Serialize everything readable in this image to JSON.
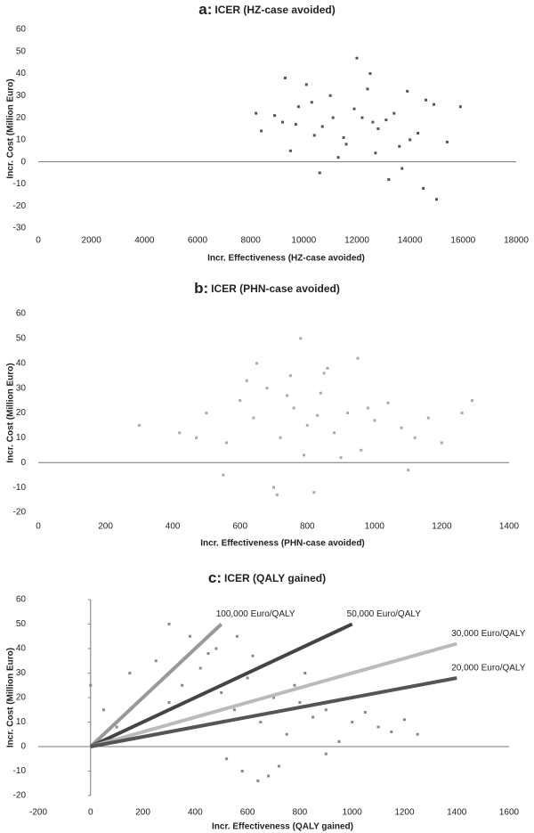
{
  "chart_data": [
    {
      "type": "scatter",
      "panel": "a:",
      "title": "ICER (HZ-case avoided)",
      "x_label": "Incr. Effectiveness (HZ-case avoided)",
      "y_label": "Incr. Cost (Million Euro)",
      "xlim": [
        0,
        18000
      ],
      "ylim": [
        -30,
        60
      ],
      "xticks": [
        0,
        2000,
        4000,
        6000,
        8000,
        10000,
        12000,
        14000,
        16000,
        18000
      ],
      "yticks": [
        -30,
        -20,
        -10,
        0,
        10,
        20,
        30,
        40,
        50,
        60
      ],
      "color": "#555555",
      "x": [
        9200,
        9800,
        10400,
        11000,
        11600,
        12200,
        12800,
        13400,
        14000,
        14600,
        9500,
        10100,
        10700,
        11300,
        11900,
        12500,
        13100,
        13700,
        14300,
        14900,
        8400,
        8900,
        15400,
        15900,
        9300,
        10600,
        12000,
        13200,
        14500,
        11500,
        10300,
        12700,
        13900,
        9700,
        11100,
        12400,
        13600,
        15000,
        8200,
        12600
      ],
      "values": [
        18,
        25,
        12,
        30,
        8,
        20,
        15,
        22,
        10,
        28,
        5,
        35,
        16,
        2,
        24,
        40,
        19,
        -3,
        13,
        26,
        14,
        21,
        9,
        25,
        38,
        -5,
        47,
        -8,
        -12,
        11,
        27,
        4,
        32,
        17,
        20,
        33,
        7,
        -17,
        22,
        18
      ]
    },
    {
      "type": "scatter",
      "panel": "b:",
      "title": "ICER (PHN-case avoided)",
      "x_label": "Incr. Effectiveness (PHN-case avoided)",
      "y_label": "Incr. Cost (Million Euro)",
      "xlim": [
        0,
        1400
      ],
      "ylim": [
        -20,
        60
      ],
      "xticks": [
        0,
        200,
        400,
        600,
        800,
        1000,
        1200,
        1400
      ],
      "yticks": [
        -20,
        -10,
        0,
        10,
        20,
        30,
        40,
        50,
        60
      ],
      "color": "#aaaaaa",
      "x": [
        300,
        420,
        500,
        560,
        600,
        640,
        680,
        720,
        760,
        800,
        840,
        880,
        920,
        960,
        1000,
        1040,
        1080,
        1120,
        1160,
        1200,
        1260,
        1290,
        650,
        700,
        750,
        780,
        820,
        860,
        900,
        550,
        620,
        740,
        790,
        850,
        980,
        1100,
        470,
        950,
        710,
        830
      ],
      "values": [
        15,
        12,
        20,
        8,
        25,
        18,
        30,
        10,
        22,
        15,
        28,
        12,
        20,
        5,
        17,
        24,
        14,
        10,
        18,
        8,
        20,
        25,
        40,
        -10,
        35,
        50,
        -12,
        38,
        2,
        -5,
        33,
        27,
        3,
        36,
        22,
        -3,
        10,
        42,
        -13,
        19
      ]
    },
    {
      "type": "scatter",
      "panel": "c:",
      "title": "ICER (QALY gained)",
      "x_label": "Incr. Effectiveness (QALY gained)",
      "y_label": "Incr. Cost (Million Euro)",
      "xlim": [
        -200,
        1600
      ],
      "ylim": [
        -20,
        60
      ],
      "xticks": [
        -200,
        0,
        200,
        400,
        600,
        800,
        1000,
        1200,
        1400,
        1600
      ],
      "yticks": [
        -20,
        -10,
        0,
        10,
        20,
        30,
        40,
        50,
        60
      ],
      "color": "#888888",
      "x": [
        0,
        50,
        100,
        150,
        200,
        250,
        300,
        350,
        400,
        450,
        500,
        550,
        600,
        650,
        700,
        750,
        800,
        850,
        900,
        950,
        1000,
        1050,
        1100,
        1150,
        1200,
        1250,
        380,
        420,
        480,
        520,
        580,
        620,
        680,
        720,
        780,
        820,
        300,
        560,
        640,
        900
      ],
      "values": [
        25,
        15,
        8,
        30,
        20,
        35,
        18,
        25,
        12,
        38,
        22,
        15,
        28,
        10,
        20,
        5,
        18,
        12,
        15,
        2,
        10,
        14,
        8,
        6,
        11,
        5,
        45,
        32,
        40,
        -5,
        -10,
        37,
        -12,
        -8,
        25,
        30,
        50,
        45,
        -14,
        -3
      ],
      "lines": [
        {
          "label": "100,000 Euro/QALY",
          "color": "#999999",
          "x": [
            0,
            500
          ],
          "values": [
            0,
            50
          ]
        },
        {
          "label": "50,000 Euro/QALY",
          "color": "#444444",
          "x": [
            0,
            1000
          ],
          "values": [
            0,
            50
          ]
        },
        {
          "label": "30,000 Euro/QALY",
          "color": "#bbbbbb",
          "x": [
            0,
            1400
          ],
          "values": [
            0,
            42
          ]
        },
        {
          "label": "20,000 Euro/QALY",
          "color": "#555555",
          "x": [
            0,
            1400
          ],
          "values": [
            0,
            28
          ]
        }
      ]
    }
  ]
}
